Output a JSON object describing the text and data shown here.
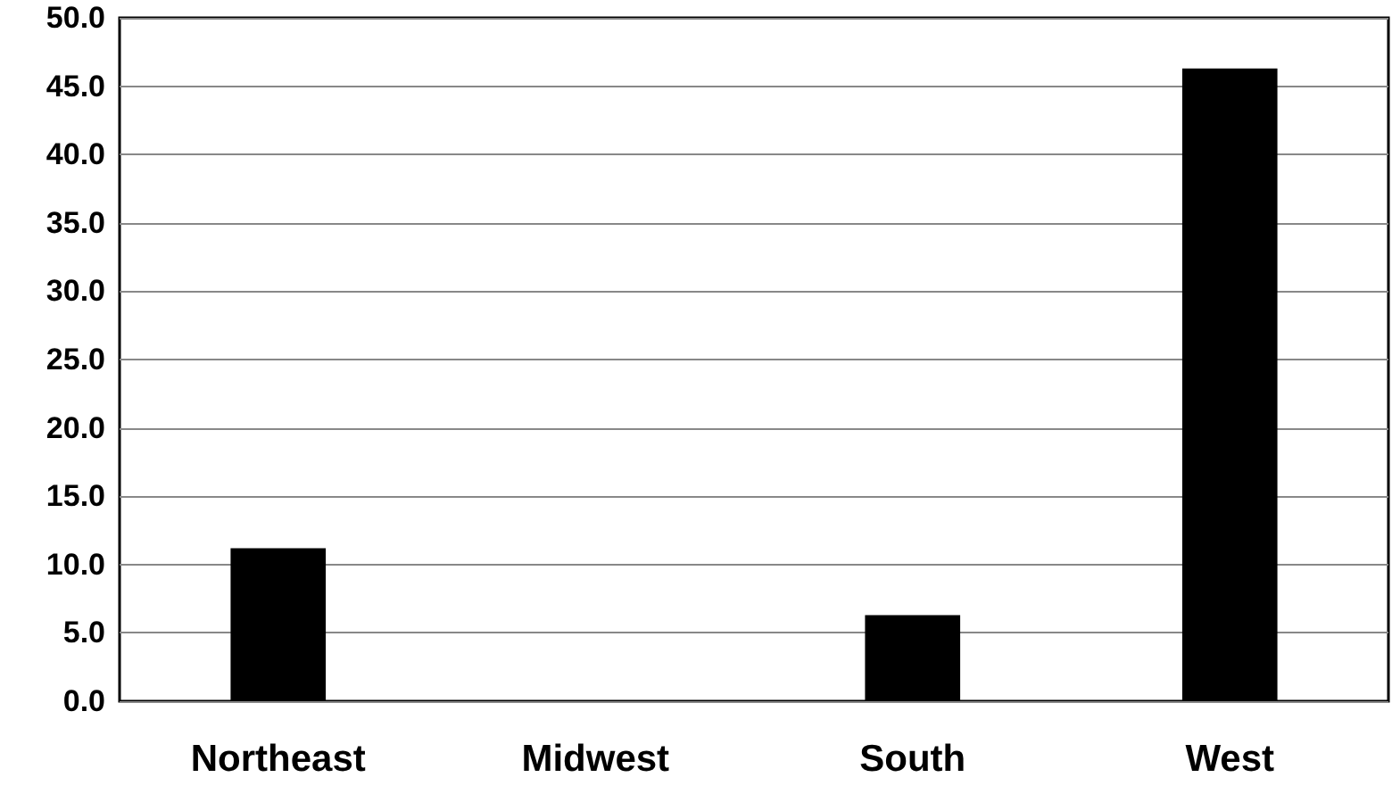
{
  "chart_data": {
    "type": "bar",
    "categories": [
      "Northeast",
      "Midwest",
      "South",
      "West"
    ],
    "values": [
      11.2,
      0,
      6.3,
      46.3
    ],
    "color": "#000000",
    "ylim": [
      0,
      50
    ],
    "yticks": [
      {
        "value": 0,
        "label": "0.0"
      },
      {
        "value": 5,
        "label": "5.0"
      },
      {
        "value": 10,
        "label": "10.0"
      },
      {
        "value": 15,
        "label": "15.0"
      },
      {
        "value": 20,
        "label": "20.0"
      },
      {
        "value": 25,
        "label": "25.0"
      },
      {
        "value": 30,
        "label": "30.0"
      },
      {
        "value": 35,
        "label": "35.0"
      },
      {
        "value": 40,
        "label": "40.0"
      },
      {
        "value": 45,
        "label": "45.0"
      },
      {
        "value": 50,
        "label": "50.0"
      }
    ],
    "grid": "y"
  }
}
